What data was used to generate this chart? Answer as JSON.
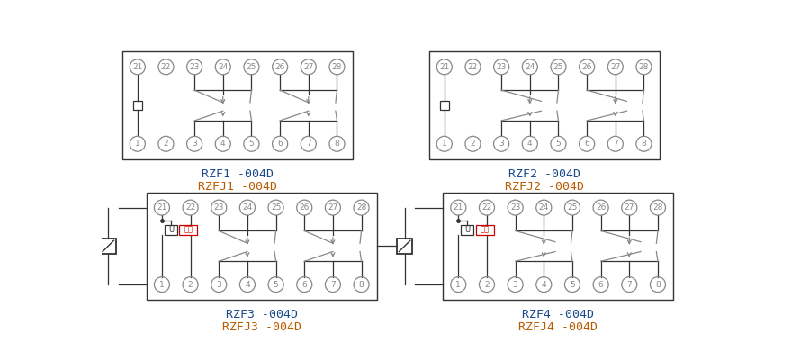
{
  "bg_color": "#ffffff",
  "line_color": "#333333",
  "circle_color": "#888888",
  "text_color_blue": "#1a4a8a",
  "text_color_orange": "#b85c00",
  "text_color_red": "#cc0000",
  "diagrams": [
    {
      "col": 0,
      "row": 1,
      "label1": "RZF1 -004D",
      "label2": "RZFJ1 -004D",
      "type": 1
    },
    {
      "col": 1,
      "row": 1,
      "label1": "RZF2 -004D",
      "label2": "RZFJ2 -004D",
      "type": 2
    },
    {
      "col": 0,
      "row": 0,
      "label1": "RZF3 -004D",
      "label2": "RZFJ3 -004D",
      "type": 3
    },
    {
      "col": 1,
      "row": 0,
      "label1": "RZF4 -004D",
      "label2": "RZFJ4 -004D",
      "type": 4
    }
  ]
}
